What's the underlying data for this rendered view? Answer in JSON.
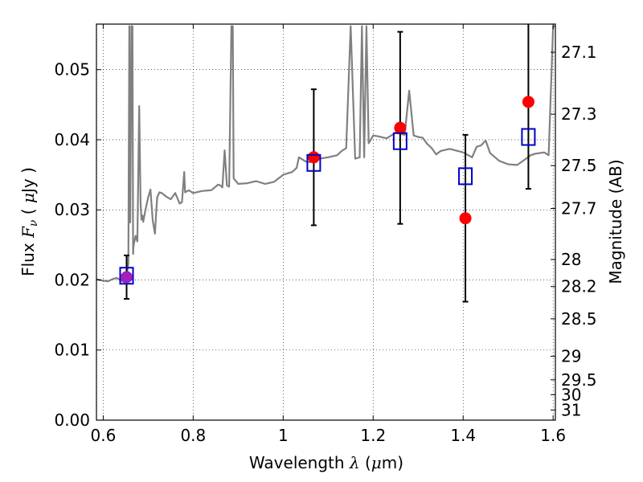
{
  "chart_data": {
    "type": "scatter",
    "xlabel": "Wavelength  λ (μm)",
    "ylabel": "Flux  Fν  ( μJy )",
    "y2label": "Magnitude (AB)",
    "xlim": [
      0.585,
      1.605
    ],
    "ylim": [
      0.0,
      0.0565
    ],
    "x_ticks": [
      0.6,
      0.8,
      1.0,
      1.2,
      1.4,
      1.6
    ],
    "x_tick_labels": [
      "0.6",
      "0.8",
      "1",
      "1.2",
      "1.4",
      "1.6"
    ],
    "y_ticks": [
      0.0,
      0.01,
      0.02,
      0.03,
      0.04,
      0.05
    ],
    "y_tick_labels": [
      "0.00",
      "0.01",
      "0.02",
      "0.03",
      "0.04",
      "0.05"
    ],
    "y2_ticks": [
      27.1,
      27.3,
      27.5,
      27.7,
      28,
      28.2,
      28.5,
      29,
      29.5,
      30,
      31
    ],
    "y2_tick_labels": [
      "27.1",
      "27.3",
      "27.5",
      "27.7",
      "28",
      "28.2",
      "28.5",
      "29",
      "29.5",
      "30",
      "31"
    ],
    "grid": true,
    "colors": {
      "template": "#808080",
      "observed": "#ff0000",
      "model": "#0000cc",
      "overlap": "#a020c0",
      "errorbar": "#000000"
    },
    "series": [
      {
        "kind": "line",
        "x": [
          0.585,
          0.6,
          0.61,
          0.62,
          0.63,
          0.64,
          0.646,
          0.652,
          0.656,
          0.658,
          0.6585,
          0.659,
          0.66,
          0.663,
          0.665,
          0.6665,
          0.667,
          0.668,
          0.672,
          0.676,
          0.68,
          0.683,
          0.685,
          0.687,
          0.689,
          0.694,
          0.7,
          0.705,
          0.71,
          0.715,
          0.718,
          0.72,
          0.725,
          0.73,
          0.74,
          0.75,
          0.76,
          0.77,
          0.775,
          0.78,
          0.782,
          0.79,
          0.8,
          0.82,
          0.84,
          0.85,
          0.855,
          0.86,
          0.865,
          0.87,
          0.875,
          0.88,
          0.885,
          0.888,
          0.89,
          0.9,
          0.92,
          0.94,
          0.96,
          0.98,
          1.0,
          1.02,
          1.03,
          1.035,
          1.04,
          1.05,
          1.06,
          1.08,
          1.1,
          1.12,
          1.13,
          1.14,
          1.15,
          1.16,
          1.17,
          1.175,
          1.18,
          1.185,
          1.19,
          1.2,
          1.21,
          1.23,
          1.25,
          1.27,
          1.28,
          1.29,
          1.3,
          1.31,
          1.32,
          1.33,
          1.34,
          1.35,
          1.37,
          1.4,
          1.42,
          1.43,
          1.44,
          1.45,
          1.46,
          1.48,
          1.5,
          1.52,
          1.54,
          1.55,
          1.56,
          1.58,
          1.59,
          1.6,
          1.605
        ],
        "y": [
          0.0201,
          0.0199,
          0.0198,
          0.0201,
          0.0203,
          0.0199,
          0.0197,
          0.0205,
          0.0223,
          0.0562,
          0.0562,
          0.0345,
          0.0282,
          0.0562,
          0.0562,
          0.0237,
          0.0245,
          0.0251,
          0.0263,
          0.0255,
          0.0448,
          0.031,
          0.0286,
          0.0292,
          0.0283,
          0.03,
          0.0318,
          0.0329,
          0.0285,
          0.0266,
          0.03,
          0.0318,
          0.0325,
          0.0324,
          0.0319,
          0.0315,
          0.0324,
          0.0309,
          0.0311,
          0.0354,
          0.0325,
          0.0328,
          0.0324,
          0.0327,
          0.0328,
          0.0333,
          0.0336,
          0.0335,
          0.0332,
          0.0385,
          0.0335,
          0.0333,
          0.0562,
          0.0562,
          0.0345,
          0.0337,
          0.0338,
          0.0341,
          0.0337,
          0.034,
          0.035,
          0.0354,
          0.036,
          0.0375,
          0.0373,
          0.0369,
          0.0368,
          0.0373,
          0.0375,
          0.0378,
          0.0384,
          0.0388,
          0.0562,
          0.0373,
          0.0375,
          0.0562,
          0.0375,
          0.0562,
          0.0395,
          0.0406,
          0.0405,
          0.0402,
          0.041,
          0.0407,
          0.047,
          0.0406,
          0.0404,
          0.0403,
          0.0394,
          0.0388,
          0.0379,
          0.0384,
          0.0387,
          0.0382,
          0.0375,
          0.039,
          0.0392,
          0.0399,
          0.0381,
          0.037,
          0.0365,
          0.0364,
          0.0373,
          0.0378,
          0.038,
          0.0382,
          0.0378,
          0.0562,
          0.0562
        ]
      },
      {
        "kind": "points",
        "name": "",
        "marker": "circle",
        "x": [
          1.068,
          1.26,
          1.405,
          1.545
        ],
        "y": [
          0.0375,
          0.0417,
          0.0288,
          0.0454
        ]
      },
      {
        "kind": "points",
        "name": "",
        "marker": "square",
        "x": [
          0.652,
          1.068,
          1.26,
          1.405,
          1.545
        ],
        "y": [
          0.0206,
          0.0367,
          0.0398,
          0.0348,
          0.0404
        ]
      },
      {
        "kind": "points",
        "name": "",
        "marker": "circle",
        "x": [
          0.652
        ],
        "y": [
          0.0204
        ]
      },
      {
        "kind": "errorbar",
        "x": [
          0.652,
          1.068,
          1.26,
          1.405,
          1.545
        ],
        "y": [
          0.0204,
          0.0375,
          0.0417,
          0.0288,
          0.0454
        ],
        "yerr_low": [
          0.0031,
          0.0097,
          0.0137,
          0.0119,
          0.0124
        ],
        "yerr_high": [
          0.0031,
          0.0097,
          0.0137,
          0.0119,
          0.0124
        ]
      }
    ]
  }
}
